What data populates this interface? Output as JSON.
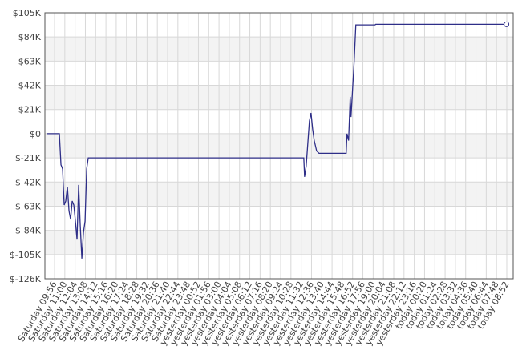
{
  "chart_data": {
    "type": "line",
    "x": [
      -50,
      30,
      40,
      50,
      60,
      70,
      80,
      90,
      100,
      110,
      120,
      130,
      140,
      150,
      160,
      170,
      180,
      190,
      200,
      210,
      1552,
      1557,
      1567,
      1577,
      1587,
      1597,
      1607,
      1617,
      1632,
      1647,
      1816,
      1821,
      1831,
      1841,
      1846,
      1856,
      1866,
      1876,
      1996,
      2000,
      2814
    ],
    "series": [
      {
        "color": "#2e2e88",
        "values": [
          0,
          0,
          -27000,
          -30600,
          -62000,
          -58500,
          -46000,
          -67000,
          -74500,
          -58500,
          -62000,
          -76000,
          -92000,
          -44500,
          -79500,
          -108500,
          -86000,
          -76000,
          -30600,
          -21000,
          -21000,
          -37500,
          -28000,
          -8500,
          11000,
          18000,
          4000,
          -6000,
          -15000,
          -17000,
          -17000,
          0,
          -6000,
          32000,
          14500,
          39000,
          63500,
          94500,
          94500,
          95000,
          95000
        ]
      }
    ],
    "xlim": [
      -60,
      2856
    ],
    "ylim": [
      -126000,
      105000
    ],
    "yticks": [
      {
        "value": 105000,
        "label": "$105K"
      },
      {
        "value": 84000,
        "label": "$84K"
      },
      {
        "value": 63000,
        "label": "$63K"
      },
      {
        "value": 42000,
        "label": "$42K"
      },
      {
        "value": 21000,
        "label": "$21K"
      },
      {
        "value": 0,
        "label": "$0"
      },
      {
        "value": -21000,
        "label": "$-21K"
      },
      {
        "value": -42000,
        "label": "$-42K"
      },
      {
        "value": -63000,
        "label": "$-63K"
      },
      {
        "value": -84000,
        "label": "$-84K"
      },
      {
        "value": -105000,
        "label": "$-105K"
      },
      {
        "value": -126000,
        "label": "$-126K"
      }
    ],
    "xticks": [
      {
        "value": 0,
        "label": "Saturday 09:56"
      },
      {
        "value": 64,
        "label": "Saturday 11:00"
      },
      {
        "value": 128,
        "label": "Saturday 12:04"
      },
      {
        "value": 192,
        "label": "Saturday 13:08"
      },
      {
        "value": 256,
        "label": "Saturday 14:12"
      },
      {
        "value": 320,
        "label": "Saturday 15:16"
      },
      {
        "value": 384,
        "label": "Saturday 16:20"
      },
      {
        "value": 448,
        "label": "Saturday 17:24"
      },
      {
        "value": 512,
        "label": "Saturday 18:28"
      },
      {
        "value": 576,
        "label": "Saturday 19:32"
      },
      {
        "value": 640,
        "label": "Saturday 20:36"
      },
      {
        "value": 704,
        "label": "Saturday 21:40"
      },
      {
        "value": 768,
        "label": "Saturday 22:44"
      },
      {
        "value": 832,
        "label": "Saturday 23:48"
      },
      {
        "value": 896,
        "label": "yesterday 00:52"
      },
      {
        "value": 960,
        "label": "yesterday 01:56"
      },
      {
        "value": 1024,
        "label": "yesterday 03:00"
      },
      {
        "value": 1088,
        "label": "yesterday 04:04"
      },
      {
        "value": 1152,
        "label": "yesterday 05:08"
      },
      {
        "value": 1216,
        "label": "yesterday 06:12"
      },
      {
        "value": 1280,
        "label": "yesterday 07:16"
      },
      {
        "value": 1344,
        "label": "yesterday 08:20"
      },
      {
        "value": 1408,
        "label": "yesterday 09:24"
      },
      {
        "value": 1472,
        "label": "yesterday 10:28"
      },
      {
        "value": 1536,
        "label": "yesterday 11:32"
      },
      {
        "value": 1600,
        "label": "yesterday 12:36"
      },
      {
        "value": 1664,
        "label": "yesterday 13:40"
      },
      {
        "value": 1728,
        "label": "yesterday 14:44"
      },
      {
        "value": 1792,
        "label": "yesterday 15:48"
      },
      {
        "value": 1856,
        "label": "yesterday 16:52"
      },
      {
        "value": 1920,
        "label": "yesterday 17:56"
      },
      {
        "value": 1984,
        "label": "yesterday 19:00"
      },
      {
        "value": 2048,
        "label": "yesterday 20:04"
      },
      {
        "value": 2112,
        "label": "yesterday 21:08"
      },
      {
        "value": 2176,
        "label": "yesterday 22:12"
      },
      {
        "value": 2240,
        "label": "yesterday 23:16"
      },
      {
        "value": 2304,
        "label": "today 00:20"
      },
      {
        "value": 2368,
        "label": "today 01:24"
      },
      {
        "value": 2432,
        "label": "today 02:28"
      },
      {
        "value": 2496,
        "label": "today 03:32"
      },
      {
        "value": 2560,
        "label": "today 04:36"
      },
      {
        "value": 2624,
        "label": "today 05:40"
      },
      {
        "value": 2688,
        "label": "today 06:44"
      },
      {
        "value": 2752,
        "label": "today 07:48"
      },
      {
        "value": 2816,
        "label": "today 08:52"
      }
    ],
    "grid": true
  }
}
